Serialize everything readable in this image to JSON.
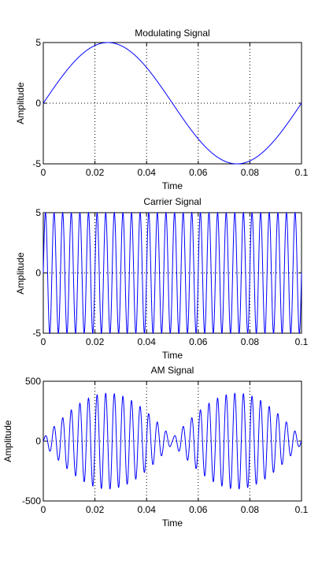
{
  "chart_data": [
    {
      "type": "line",
      "title": "Modulating Signal",
      "xlabel": "Time",
      "ylabel": "Amplitude",
      "xlim": [
        0,
        0.1
      ],
      "ylim": [
        -5,
        5
      ],
      "xticks": [
        0,
        0.02,
        0.04,
        0.06,
        0.08,
        0.1
      ],
      "xtick_labels": [
        "0",
        "0.02",
        "0.04",
        "0.06",
        "0.08",
        "0.1"
      ],
      "yticks": [
        -5,
        0,
        5
      ],
      "ytick_labels": [
        "-5",
        "0",
        "5"
      ],
      "grid": true,
      "color": "#0000ff",
      "series": [
        {
          "function": "5*sin(2*pi*10*t)",
          "x": [
            0,
            0.0125,
            0.025,
            0.0375,
            0.05,
            0.0625,
            0.075,
            0.0875,
            0.1
          ],
          "y": [
            0,
            3.54,
            5,
            3.54,
            0,
            -3.54,
            -5,
            -3.54,
            0
          ]
        }
      ]
    },
    {
      "type": "line",
      "title": "Carrier Signal",
      "xlabel": "Time",
      "ylabel": "Amplitude",
      "xlim": [
        0,
        0.1
      ],
      "ylim": [
        -5,
        5
      ],
      "xticks": [
        0,
        0.02,
        0.04,
        0.06,
        0.08,
        0.1
      ],
      "xtick_labels": [
        "0",
        "0.02",
        "0.04",
        "0.06",
        "0.08",
        "0.1"
      ],
      "yticks": [
        -5,
        0,
        5
      ],
      "ytick_labels": [
        "-5",
        "0",
        "5"
      ],
      "grid": true,
      "color": "#0000ff",
      "series": [
        {
          "function": "5*sin(2*pi*300*t)",
          "amplitude": 5,
          "frequency_hz": 300,
          "cycles_shown": 30
        }
      ]
    },
    {
      "type": "line",
      "title": "AM Signal",
      "xlabel": "Time",
      "ylabel": "Amplitude",
      "xlim": [
        0,
        0.1
      ],
      "ylim": [
        -500,
        500
      ],
      "xticks": [
        0,
        0.02,
        0.04,
        0.06,
        0.08,
        0.1
      ],
      "xtick_labels": [
        "0",
        "0.02",
        "0.04",
        "0.06",
        "0.08",
        "0.1"
      ],
      "yticks": [
        -500,
        0,
        500
      ],
      "ytick_labels": [
        "-500",
        "0",
        "500"
      ],
      "grid": true,
      "color": "#0000ff",
      "series": [
        {
          "function": "(16*5*sin(2*pi*10*t) + 0.8*16*25... ) ~ envelope 400*|sin(2*pi*10*t)| + 25 carried at 300 Hz",
          "carrier_frequency_hz": 300,
          "envelope_peak": 400,
          "envelope_min": 25,
          "envelope_peak_times": [
            0.025,
            0.075
          ],
          "envelope_min_times": [
            0,
            0.05,
            0.1
          ]
        }
      ]
    }
  ]
}
